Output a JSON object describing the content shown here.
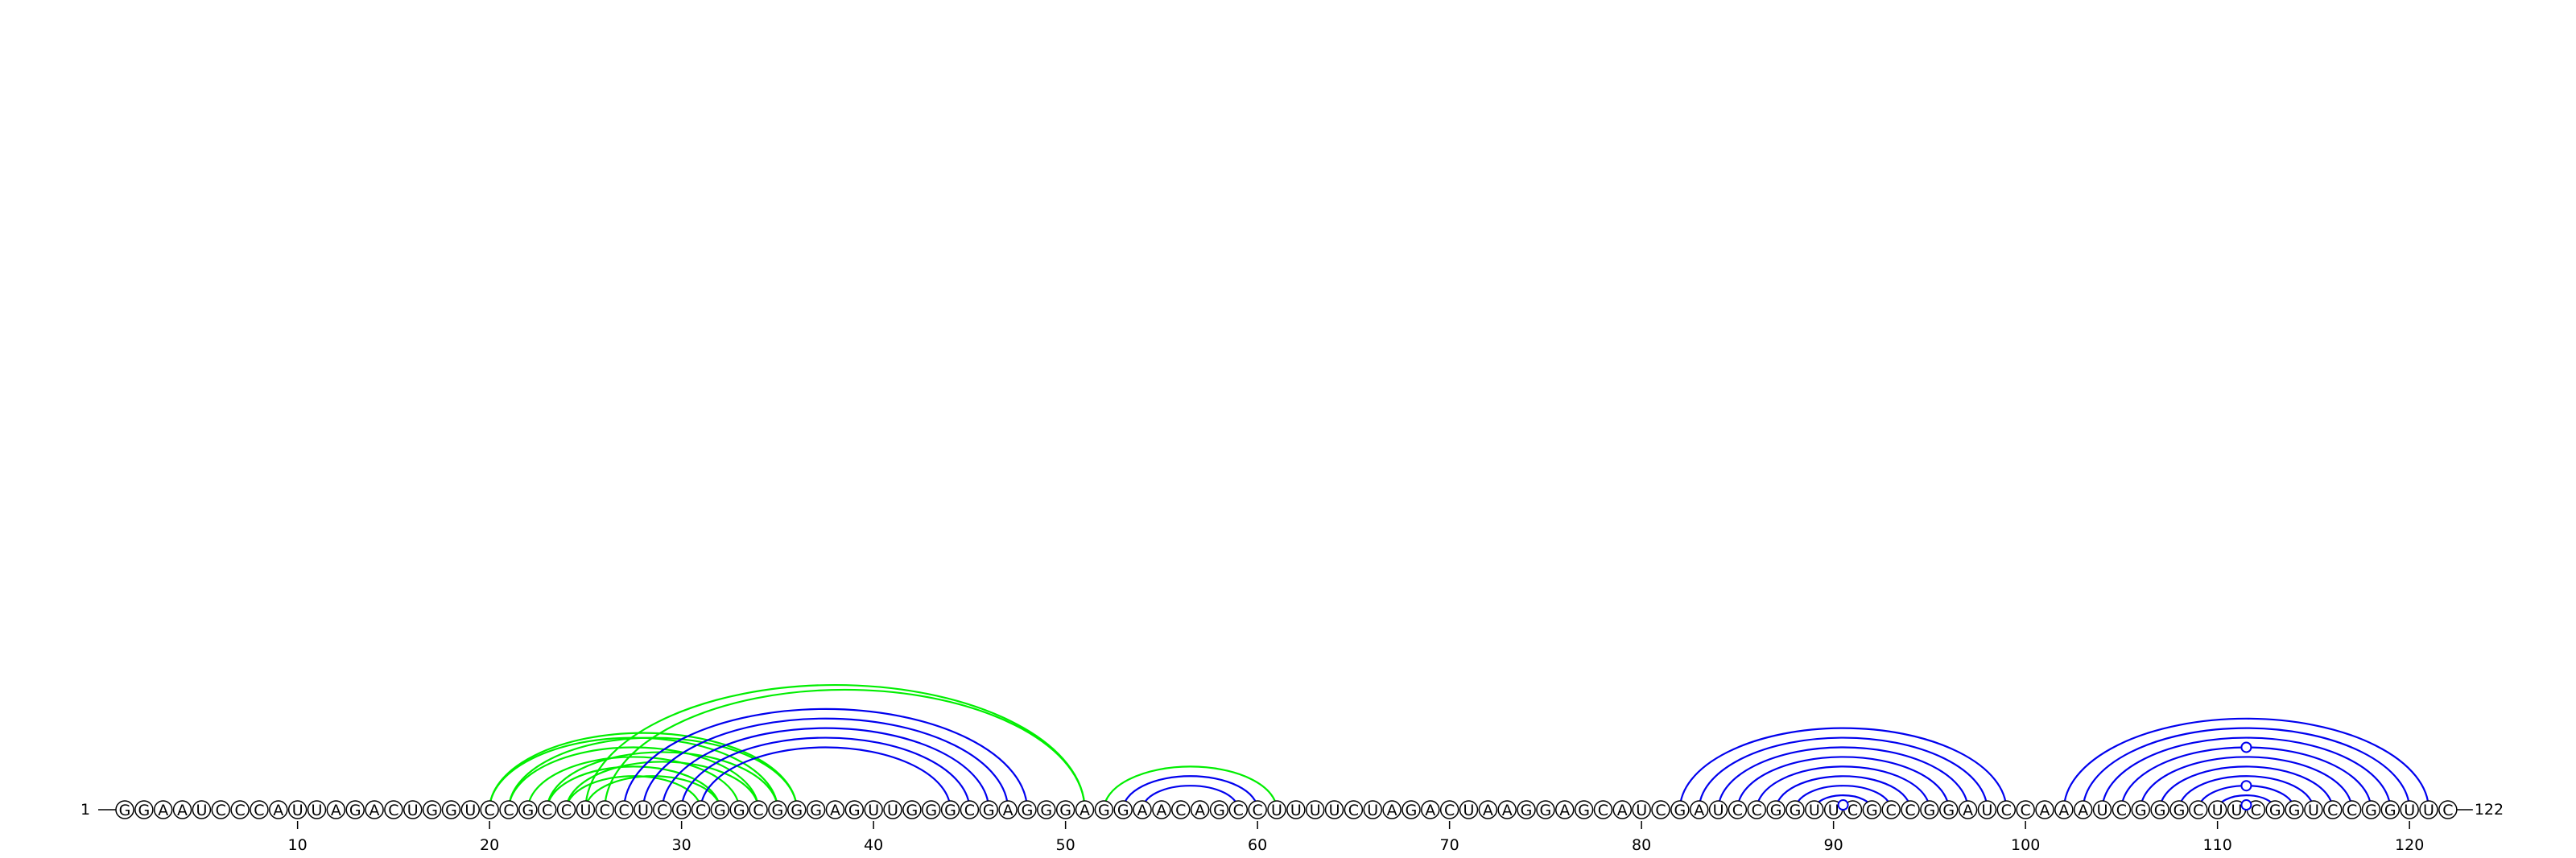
{
  "sequence": "GGAAUCCCAUUAGACUGGUCCGCCUCCUCGCGGCGGGAGUUGGGCGAGGGAGGAACAGCCUUUUCUAGACUAAGGAGCAUCGAUCCGGUUCGCCGGAUCCAAAUCGGGCUUCGGUCCGGUUC",
  "start_label": "1",
  "end_label": "122",
  "ticks": [
    "10",
    "20",
    "30",
    "40",
    "50",
    "60",
    "70",
    "80",
    "90",
    "100",
    "110",
    "120"
  ],
  "colors": {
    "blue": "#0000ee",
    "green": "#00ee00",
    "ink": "#000000"
  },
  "pairs": [
    {
      "i": 20,
      "j": 35,
      "color": "green"
    },
    {
      "i": 21,
      "j": 34,
      "color": "green"
    },
    {
      "i": 22,
      "j": 33,
      "color": "green"
    },
    {
      "i": 23,
      "j": 32,
      "color": "green"
    },
    {
      "i": 24,
      "j": 31,
      "color": "green"
    },
    {
      "i": 20,
      "j": 36,
      "color": "green"
    },
    {
      "i": 21,
      "j": 36,
      "color": "green"
    },
    {
      "i": 23,
      "j": 35,
      "color": "green"
    },
    {
      "i": 24,
      "j": 34,
      "color": "green"
    },
    {
      "i": 25,
      "j": 32,
      "color": "green"
    },
    {
      "i": 25,
      "j": 51,
      "color": "green"
    },
    {
      "i": 26,
      "j": 51,
      "color": "green"
    },
    {
      "i": 52,
      "j": 61,
      "color": "green"
    },
    {
      "i": 27,
      "j": 48,
      "color": "blue"
    },
    {
      "i": 28,
      "j": 47,
      "color": "blue"
    },
    {
      "i": 29,
      "j": 46,
      "color": "blue"
    },
    {
      "i": 30,
      "j": 45,
      "color": "blue"
    },
    {
      "i": 31,
      "j": 44,
      "color": "blue"
    },
    {
      "i": 53,
      "j": 60,
      "color": "blue"
    },
    {
      "i": 54,
      "j": 59,
      "color": "blue"
    },
    {
      "i": 82,
      "j": 99,
      "color": "blue"
    },
    {
      "i": 83,
      "j": 98,
      "color": "blue"
    },
    {
      "i": 84,
      "j": 97,
      "color": "blue"
    },
    {
      "i": 85,
      "j": 96,
      "color": "blue"
    },
    {
      "i": 86,
      "j": 95,
      "color": "blue"
    },
    {
      "i": 87,
      "j": 94,
      "color": "blue"
    },
    {
      "i": 88,
      "j": 93,
      "color": "blue"
    },
    {
      "i": 89,
      "j": 92,
      "color": "blue"
    },
    {
      "i": 102,
      "j": 121,
      "color": "blue"
    },
    {
      "i": 103,
      "j": 120,
      "color": "blue"
    },
    {
      "i": 104,
      "j": 119,
      "color": "blue"
    },
    {
      "i": 105,
      "j": 118,
      "color": "blue"
    },
    {
      "i": 106,
      "j": 117,
      "color": "blue"
    },
    {
      "i": 107,
      "j": 116,
      "color": "blue"
    },
    {
      "i": 108,
      "j": 115,
      "color": "blue"
    },
    {
      "i": 109,
      "j": 114,
      "color": "blue"
    },
    {
      "i": 110,
      "j": 113,
      "color": "blue"
    }
  ],
  "markers": [
    {
      "pos": 90.5,
      "level": 1,
      "color": "blue"
    },
    {
      "pos": 111.5,
      "level": 1,
      "color": "blue"
    },
    {
      "pos": 111.5,
      "level": 3,
      "color": "blue"
    },
    {
      "pos": 111.5,
      "level": 7,
      "color": "blue"
    }
  ]
}
